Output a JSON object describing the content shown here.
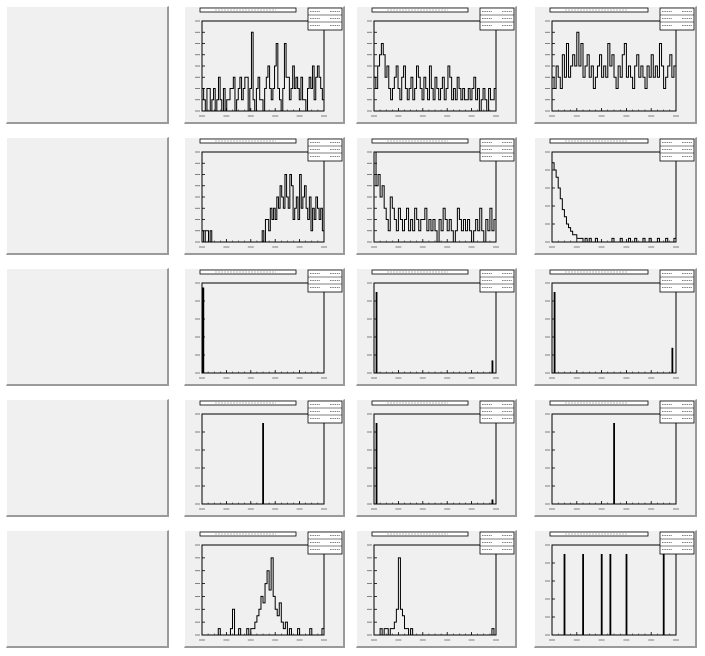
{
  "chart_data": [
    {
      "type": "histogram",
      "row": 0,
      "col": 0,
      "xlim": [
        0,
        100
      ],
      "ylim": [
        0,
        8
      ],
      "values": [
        2,
        1,
        0,
        2,
        2,
        0,
        1,
        2,
        0,
        1,
        3,
        1,
        0,
        2,
        0,
        1,
        1,
        2,
        2,
        3,
        0,
        1,
        2,
        3,
        1,
        2,
        3,
        3,
        0,
        2,
        7,
        1,
        0,
        2,
        3,
        1,
        1,
        0,
        2,
        3,
        4,
        2,
        1,
        2,
        4,
        6,
        2,
        1,
        0,
        2,
        6,
        3,
        3,
        1,
        2,
        4,
        2,
        3,
        2,
        1,
        3,
        1,
        1,
        0,
        2,
        3,
        2,
        4,
        1,
        3,
        4,
        3,
        2,
        1
      ],
      "ticks_y": [
        0,
        1,
        2,
        3,
        4,
        5,
        6,
        7,
        8
      ]
    },
    {
      "type": "histogram",
      "row": 0,
      "col": 1,
      "xlim": [
        0,
        100
      ],
      "ylim": [
        0,
        8
      ],
      "values": [
        3,
        2,
        4,
        5,
        6,
        5,
        3,
        4,
        2,
        1,
        2,
        3,
        4,
        2,
        1,
        3,
        4,
        2,
        1,
        2,
        3,
        1,
        2,
        4,
        3,
        2,
        1,
        3,
        2,
        1,
        4,
        2,
        1,
        3,
        2,
        1,
        2,
        3,
        1,
        2,
        4,
        3,
        1,
        2,
        1,
        3,
        2,
        1,
        2,
        1,
        1,
        2,
        1,
        2,
        3,
        1,
        2,
        0,
        1,
        2,
        1,
        0,
        2,
        1,
        1,
        2
      ],
      "ticks_y": [
        0,
        1,
        2,
        3,
        4,
        5,
        6,
        7,
        8
      ]
    },
    {
      "type": "histogram",
      "row": 0,
      "col": 2,
      "xlim": [
        0,
        100
      ],
      "ylim": [
        0,
        8
      ],
      "values": [
        3,
        2,
        4,
        3,
        2,
        5,
        3,
        6,
        3,
        4,
        5,
        4,
        7,
        4,
        6,
        3,
        4,
        5,
        3,
        4,
        2,
        3,
        4,
        5,
        3,
        4,
        3,
        6,
        4,
        5,
        3,
        2,
        4,
        3,
        5,
        6,
        3,
        4,
        3,
        2,
        4,
        5,
        3,
        4,
        3,
        2,
        4,
        3,
        5,
        3,
        4,
        3,
        6,
        4,
        2,
        3,
        4,
        5,
        3,
        4
      ],
      "ticks_y": [
        0,
        1,
        2,
        3,
        4,
        5,
        6,
        7,
        8
      ]
    },
    {
      "type": "histogram",
      "row": 1,
      "col": 0,
      "xlim": [
        0,
        100
      ],
      "ylim": [
        0,
        8
      ],
      "values": [
        1,
        0,
        1,
        1,
        0,
        1,
        0,
        0,
        0,
        0,
        0,
        0,
        0,
        0,
        0,
        0,
        0,
        0,
        0,
        0,
        0,
        0,
        0,
        0,
        0,
        0,
        0,
        0,
        0,
        0,
        0,
        0,
        0,
        0,
        0,
        0,
        0,
        1,
        0,
        2,
        2,
        1,
        3,
        2,
        3,
        2,
        4,
        3,
        5,
        4,
        3,
        6,
        4,
        3,
        6,
        5,
        2,
        3,
        4,
        2,
        6,
        3,
        4,
        5,
        3,
        2,
        4,
        1,
        3,
        2,
        4,
        3,
        2,
        3,
        1
      ],
      "ticks_y": [
        0,
        1,
        2,
        3,
        4,
        5,
        6,
        7,
        8
      ]
    },
    {
      "type": "histogram",
      "row": 1,
      "col": 1,
      "xlim": [
        0,
        100
      ],
      "ylim": [
        0,
        8
      ],
      "values": [
        8,
        5,
        6,
        4,
        5,
        3,
        2,
        1,
        4,
        3,
        2,
        1,
        3,
        2,
        1,
        2,
        3,
        1,
        2,
        1,
        3,
        2,
        1,
        2,
        2,
        3,
        1,
        2,
        1,
        2,
        1,
        0,
        2,
        1,
        3,
        2,
        1,
        2,
        1,
        0,
        1,
        3,
        2,
        1,
        2,
        1,
        2,
        1,
        0,
        1,
        2,
        1,
        3,
        1,
        0,
        2,
        1,
        3,
        1,
        2
      ],
      "ticks_y": [
        0,
        1,
        2,
        3,
        4,
        5,
        6,
        7,
        8
      ]
    },
    {
      "type": "histogram",
      "row": 1,
      "col": 2,
      "xlim": [
        0,
        100
      ],
      "ylim": [
        0,
        25
      ],
      "values": [
        22,
        20,
        18,
        15,
        12,
        9,
        7,
        5,
        4,
        3,
        2,
        2,
        1,
        1,
        1,
        0,
        1,
        0,
        1,
        0,
        0,
        1,
        0,
        0,
        0,
        0,
        0,
        0,
        0,
        1,
        0,
        0,
        0,
        1,
        0,
        0,
        0,
        1,
        0,
        0,
        1,
        0,
        0,
        0,
        1,
        0,
        0,
        1,
        0,
        0,
        0,
        1,
        0,
        0,
        0,
        1,
        0,
        0,
        0,
        1
      ],
      "ticks_y": [
        0,
        5,
        10,
        15,
        20,
        25
      ]
    },
    {
      "type": "histogram",
      "row": 2,
      "col": 0,
      "xlim": [
        0,
        100
      ],
      "ylim": [
        0,
        100
      ],
      "spikes": [
        {
          "x": 1,
          "y": 95
        }
      ],
      "ticks_y": [
        0,
        20,
        40,
        60,
        80,
        100
      ]
    },
    {
      "type": "histogram",
      "row": 2,
      "col": 1,
      "xlim": [
        0,
        100
      ],
      "ylim": [
        0,
        100
      ],
      "spikes": [
        {
          "x": 2,
          "y": 90
        },
        {
          "x": 97,
          "y": 14
        }
      ],
      "ticks_y": [
        0,
        20,
        40,
        60,
        80,
        100
      ]
    },
    {
      "type": "histogram",
      "row": 2,
      "col": 2,
      "xlim": [
        0,
        100
      ],
      "ylim": [
        0,
        100
      ],
      "spikes": [
        {
          "x": 2,
          "y": 90
        },
        {
          "x": 97,
          "y": 28
        }
      ],
      "ticks_y": [
        0,
        20,
        40,
        60,
        80,
        100
      ]
    },
    {
      "type": "histogram",
      "row": 3,
      "col": 0,
      "xlim": [
        0,
        100
      ],
      "ylim": [
        0,
        100
      ],
      "spikes": [
        {
          "x": 50,
          "y": 90
        }
      ],
      "ticks_y": [
        0,
        20,
        40,
        60,
        80,
        100
      ]
    },
    {
      "type": "histogram",
      "row": 3,
      "col": 1,
      "xlim": [
        0,
        100
      ],
      "ylim": [
        0,
        100
      ],
      "spikes": [
        {
          "x": 2,
          "y": 90
        },
        {
          "x": 97,
          "y": 5
        }
      ],
      "ticks_y": [
        0,
        20,
        40,
        60,
        80,
        100
      ]
    },
    {
      "type": "histogram",
      "row": 3,
      "col": 2,
      "xlim": [
        0,
        100
      ],
      "ylim": [
        0,
        100
      ],
      "spikes": [
        {
          "x": 50,
          "y": 90
        }
      ],
      "ticks_y": [
        0,
        20,
        40,
        60,
        80,
        100
      ]
    },
    {
      "type": "histogram",
      "row": 4,
      "col": 0,
      "xlim": [
        0,
        100
      ],
      "ylim": [
        0,
        14
      ],
      "values": [
        0,
        0,
        0,
        0,
        0,
        0,
        0,
        0,
        1,
        0,
        0,
        0,
        0,
        0,
        1,
        4,
        0,
        0,
        1,
        0,
        0,
        0,
        1,
        0,
        1,
        1,
        2,
        3,
        4,
        6,
        5,
        8,
        10,
        7,
        12,
        6,
        4,
        3,
        5,
        2,
        1,
        2,
        0,
        1,
        0,
        0,
        0,
        1,
        0,
        0,
        0,
        0,
        0,
        1,
        0,
        0,
        0,
        0,
        0,
        1
      ],
      "ticks_y": [
        0,
        2,
        4,
        6,
        8,
        10,
        12,
        14
      ]
    },
    {
      "type": "histogram",
      "row": 4,
      "col": 1,
      "xlim": [
        0,
        100
      ],
      "ylim": [
        0,
        14
      ],
      "values": [
        0,
        0,
        0,
        1,
        0,
        1,
        1,
        0,
        1,
        1,
        2,
        4,
        12,
        4,
        3,
        1,
        1,
        0,
        1,
        0,
        0,
        0,
        0,
        0,
        0,
        0,
        0,
        0,
        0,
        0,
        0,
        0,
        0,
        0,
        0,
        0,
        0,
        0,
        0,
        0,
        0,
        0,
        0,
        0,
        0,
        0,
        0,
        0,
        0,
        0,
        0,
        0,
        0,
        0,
        0,
        0,
        0,
        0,
        1,
        0
      ],
      "ticks_y": [
        0,
        2,
        4,
        6,
        8,
        10,
        12,
        14
      ]
    },
    {
      "type": "histogram",
      "row": 4,
      "col": 2,
      "xlim": [
        0,
        100
      ],
      "ylim": [
        0,
        10
      ],
      "spikes": [
        {
          "x": 10,
          "y": 9
        },
        {
          "x": 25,
          "y": 9
        },
        {
          "x": 40,
          "y": 9
        },
        {
          "x": 47,
          "y": 9
        },
        {
          "x": 60,
          "y": 9
        },
        {
          "x": 90,
          "y": 9
        }
      ],
      "ticks_y": [
        0,
        2,
        4,
        6,
        8,
        10
      ]
    }
  ]
}
